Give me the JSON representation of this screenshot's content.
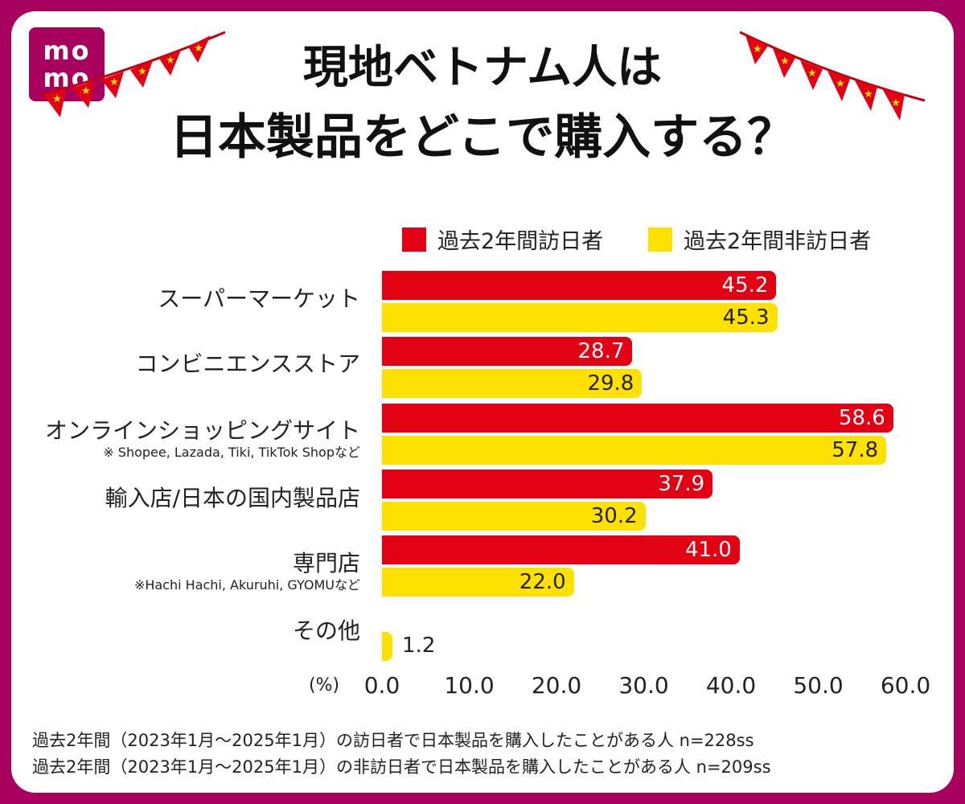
{
  "logo": {
    "line1": "mo",
    "line2": "mo"
  },
  "title": {
    "line1": "現地ベトナム人は",
    "line2": "日本製品をどこで購入する？"
  },
  "colors": {
    "visited": "#e30012",
    "non_visited": "#ffe100",
    "frame": "#a8005e"
  },
  "axis": {
    "unit": "(%)"
  },
  "notes": [
    "過去2年間（2023年1月～2025年1月）の訪日者で日本製品を購入したことがある人 n=228ss",
    "過去2年間（2023年1月～2025年1月）の非訪日者で日本製品を購入したことがある人 n=209ss"
  ],
  "chart_data": {
    "type": "bar",
    "orientation": "horizontal",
    "categories": [
      "スーパーマーケット",
      "コンビニエンスストア",
      "オンラインショッピングサイト",
      "輸入店/日本の国内製品店",
      "専門店",
      "その他"
    ],
    "category_notes": [
      "",
      "",
      "※ Shopee, Lazada, Tiki, TikTok Shopなど",
      "",
      "※Hachi Hachi, Akuruhi, GYOMUなど",
      ""
    ],
    "series": [
      {
        "name": "過去2年間訪日者",
        "values": [
          45.2,
          28.7,
          58.6,
          37.9,
          41.0,
          null
        ],
        "labels": [
          "45.2",
          "28.7",
          "58.6",
          "37.9",
          "41.0",
          ""
        ],
        "color": "#e30012"
      },
      {
        "name": "過去2年間非訪日者",
        "values": [
          45.3,
          29.8,
          57.8,
          30.2,
          22.0,
          1.2
        ],
        "labels": [
          "45.3",
          "29.8",
          "57.8",
          "30.2",
          "22.0",
          "1.2"
        ],
        "color": "#ffe100"
      }
    ],
    "xlim": [
      0,
      60
    ],
    "ticks": [
      "0.0",
      "10.0",
      "20.0",
      "30.0",
      "40.0",
      "50.0",
      "60.0"
    ],
    "legend": "top-right",
    "grid": false
  }
}
